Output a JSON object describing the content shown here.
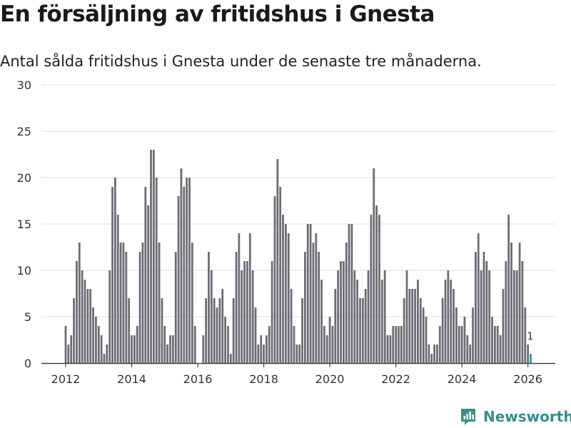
{
  "title": "En försäljning av fritidshus i Gnesta",
  "subtitle": "Antal sålda fritidshus i Gnesta under de senaste tre månaderna.",
  "brand": {
    "name": "Newsworthy",
    "icon": "newsworthy-logo-icon"
  },
  "colors": {
    "bar": "#6e6d73",
    "highlight": "#2a9d8f",
    "grid": "#dddddd",
    "text": "#333333",
    "brand": "#3b8d8a"
  },
  "chart_data": {
    "type": "bar",
    "title": "En försäljning av fritidshus i Gnesta",
    "subtitle": "Antal sålda fritidshus i Gnesta under de senaste tre månaderna.",
    "xlabel": "",
    "ylabel": "",
    "ylim": [
      0,
      30
    ],
    "yticks": [
      0,
      5,
      10,
      15,
      20,
      25,
      30
    ],
    "grid": true,
    "x_start": "2012-01",
    "x_step": "month",
    "xticks": [
      {
        "label": "2012",
        "index": 0
      },
      {
        "label": "2014",
        "index": 24
      },
      {
        "label": "2016",
        "index": 48
      },
      {
        "label": "2018",
        "index": 72
      },
      {
        "label": "2020",
        "index": 96
      },
      {
        "label": "2022",
        "index": 120
      },
      {
        "label": "2024",
        "index": 144
      },
      {
        "label": "2026",
        "index": 168
      }
    ],
    "values": [
      4,
      2,
      3,
      7,
      11,
      13,
      10,
      9,
      8,
      8,
      6,
      5,
      4,
      3,
      1,
      2,
      10,
      19,
      20,
      16,
      13,
      13,
      12,
      7,
      3,
      3,
      4,
      12,
      13,
      19,
      17,
      23,
      23,
      20,
      13,
      7,
      4,
      2,
      3,
      3,
      12,
      18,
      21,
      19,
      20,
      20,
      13,
      4,
      null,
      null,
      3,
      7,
      12,
      10,
      7,
      6,
      7,
      8,
      5,
      4,
      1,
      7,
      12,
      14,
      10,
      11,
      11,
      14,
      10,
      6,
      2,
      3,
      2,
      3,
      4,
      11,
      18,
      22,
      19,
      16,
      15,
      14,
      8,
      4,
      2,
      2,
      7,
      12,
      15,
      15,
      13,
      14,
      12,
      9,
      4,
      3,
      5,
      4,
      8,
      10,
      11,
      11,
      13,
      15,
      15,
      10,
      9,
      7,
      7,
      8,
      10,
      16,
      21,
      17,
      16,
      9,
      10,
      3,
      3,
      4,
      4,
      4,
      4,
      7,
      10,
      8,
      8,
      8,
      9,
      7,
      6,
      5,
      2,
      1,
      2,
      2,
      4,
      7,
      9,
      10,
      9,
      8,
      6,
      4,
      4,
      5,
      3,
      2,
      6,
      12,
      14,
      10,
      12,
      11,
      10,
      5,
      4,
      4,
      3,
      8,
      11,
      16,
      13,
      10,
      10,
      13,
      11,
      6,
      2,
      1
    ],
    "highlight_index": 169,
    "annotations": [
      {
        "index": 169,
        "text": "1"
      }
    ]
  }
}
